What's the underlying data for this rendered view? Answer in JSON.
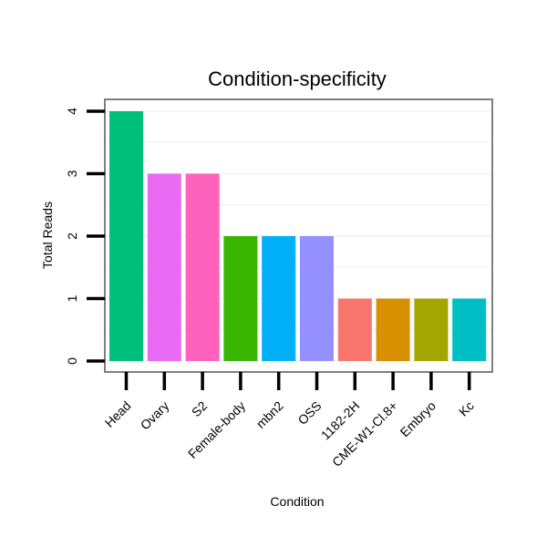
{
  "chart_data": {
    "type": "bar",
    "title": "Condition-specificity",
    "xlabel": "Condition",
    "ylabel": "Total Reads",
    "ylim": [
      0,
      4
    ],
    "yticks": [
      0,
      1,
      2,
      3,
      4
    ],
    "grid": true,
    "legend": "none",
    "categories": [
      "Head",
      "Ovary",
      "S2",
      "Female-body",
      "mbn2",
      "OSS",
      "1182-2H",
      "CME-W1-Cl.8+",
      "Embryo",
      "Kc"
    ],
    "values": [
      4,
      3,
      3,
      2,
      2,
      2,
      1,
      1,
      1,
      1
    ],
    "colors": [
      "#00BF7D",
      "#E76BF3",
      "#FF62BC",
      "#39B600",
      "#00B0F6",
      "#9590FF",
      "#F8766D",
      "#D89000",
      "#A3A500",
      "#00BFC4"
    ]
  }
}
